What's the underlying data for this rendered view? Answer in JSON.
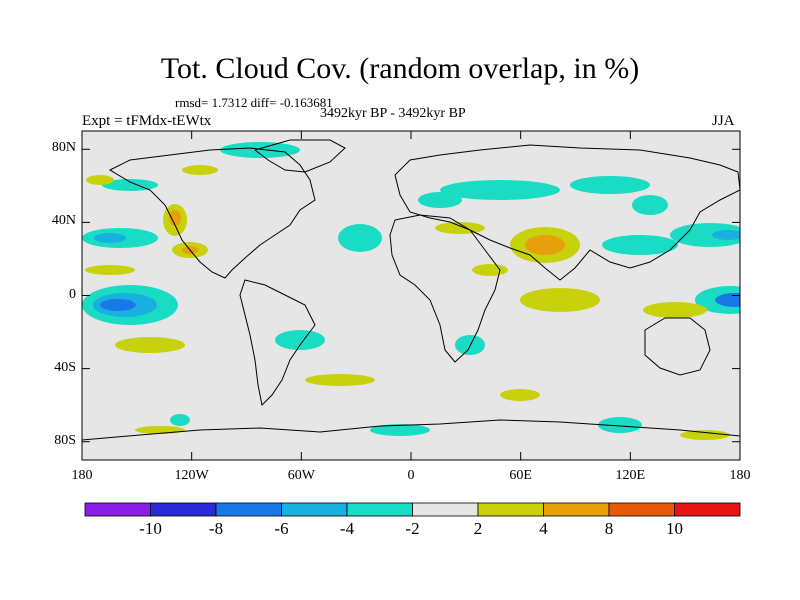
{
  "title": "Tot. Cloud Cov. (random overlap, in %)",
  "stats": "rmsd= 1.7312 diff= -0.163681",
  "period": "3492kyr BP - 3492kyr BP",
  "expt": "Expt = tFMdx-tEWtx",
  "season": "JJA",
  "lat_ticks": [
    "80N",
    "40N",
    "0",
    "40S",
    "80S"
  ],
  "lat_values": [
    80,
    40,
    0,
    -40,
    -80
  ],
  "lon_ticks": [
    "180",
    "120W",
    "60W",
    "0",
    "60E",
    "120E",
    "180"
  ],
  "lon_values": [
    -180,
    -120,
    -60,
    0,
    60,
    120,
    180
  ],
  "colorbar": {
    "colors": [
      "#8a1ee6",
      "#2a2ad6",
      "#1a78e6",
      "#18b0e0",
      "#1adcc4",
      "#e6e6e6",
      "#c8d20c",
      "#e6a00c",
      "#e65a0a",
      "#e61414"
    ],
    "labels": [
      "-10",
      "-8",
      "-6",
      "-4",
      "-2",
      "2",
      "4",
      "8",
      "10"
    ]
  },
  "map": {
    "background_color": "#e6e6e6",
    "lon_range": [
      -180,
      180
    ],
    "lat_range": [
      -90,
      90
    ]
  }
}
